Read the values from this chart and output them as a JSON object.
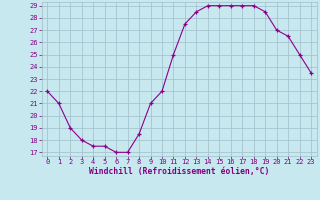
{
  "x": [
    0,
    1,
    2,
    3,
    4,
    5,
    6,
    7,
    8,
    9,
    10,
    11,
    12,
    13,
    14,
    15,
    16,
    17,
    18,
    19,
    20,
    21,
    22,
    23
  ],
  "y": [
    22,
    21,
    19,
    18,
    17.5,
    17.5,
    17,
    17,
    18.5,
    21,
    22,
    25,
    27.5,
    28.5,
    29,
    29,
    29,
    29,
    29,
    28.5,
    27,
    26.5,
    25,
    23.5
  ],
  "line_color": "#8B008B",
  "marker": "+",
  "bg_color": "#c8e8f0",
  "grid_color": "#a0bec8",
  "xlabel": "Windchill (Refroidissement éolien,°C)",
  "ylim_min": 17,
  "ylim_max": 29,
  "yticks": [
    17,
    18,
    19,
    20,
    21,
    22,
    23,
    24,
    25,
    26,
    27,
    28,
    29
  ],
  "xticks": [
    0,
    1,
    2,
    3,
    4,
    5,
    6,
    7,
    8,
    9,
    10,
    11,
    12,
    13,
    14,
    15,
    16,
    17,
    18,
    19,
    20,
    21,
    22,
    23
  ],
  "tick_color": "#800080",
  "label_color": "#800080",
  "label_fontsize": 5.8,
  "tick_fontsize": 5.0
}
